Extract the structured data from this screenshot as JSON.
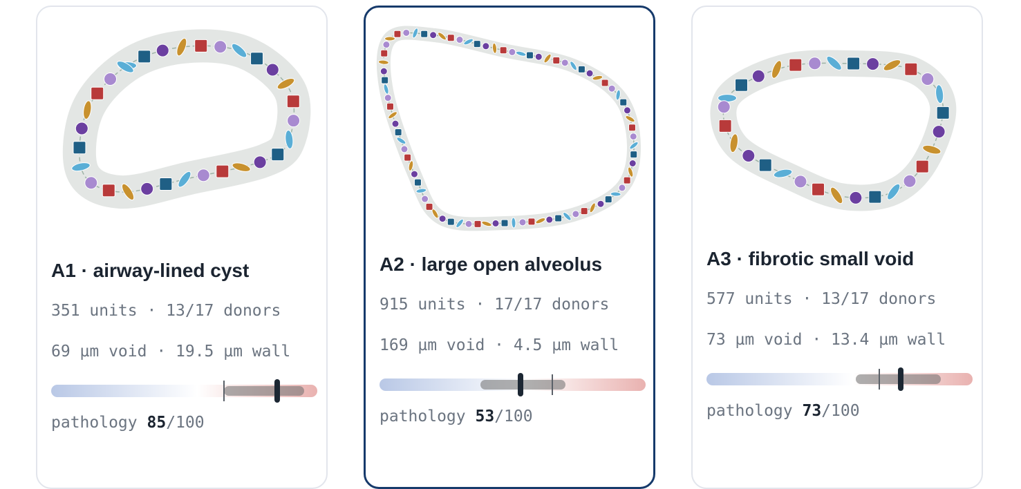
{
  "cards": [
    {
      "title": "A1 · airway-lined cyst",
      "stats": [
        "351 units · 13/17 donors",
        "69 µm void · 19.5 µm wall"
      ],
      "score_label": "pathology",
      "score": 85,
      "score_max": "/100",
      "scale": [
        0,
        100
      ],
      "range": [
        65,
        95
      ],
      "reference": 65,
      "selected": false
    },
    {
      "title": "A2 · large open alveolus",
      "stats": [
        "915 units · 17/17 donors",
        "169 µm void · 4.5 µm wall"
      ],
      "score_label": "pathology",
      "score": 53,
      "score_max": "/100",
      "scale": [
        0,
        100
      ],
      "range": [
        38,
        70
      ],
      "reference": 65,
      "selected": true
    },
    {
      "title": "A3 · fibrotic small void",
      "stats": [
        "577 units · 13/17 donors",
        "73 µm void · 13.4 µm wall"
      ],
      "score_label": "pathology",
      "score": 73,
      "score_max": "/100",
      "scale": [
        0,
        100
      ],
      "range": [
        56,
        88
      ],
      "reference": 65,
      "selected": false
    }
  ]
}
